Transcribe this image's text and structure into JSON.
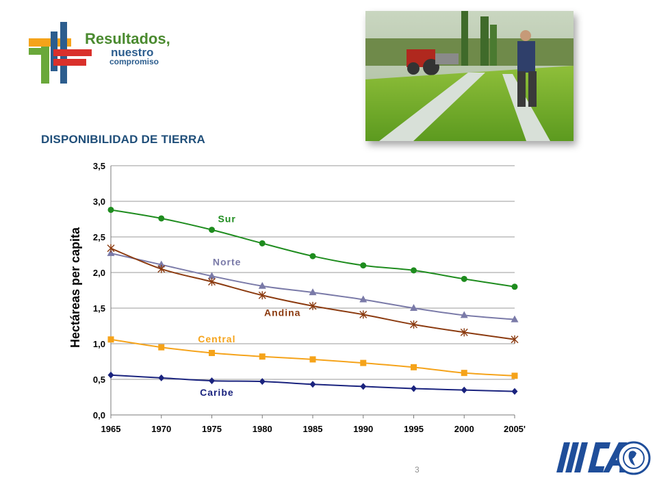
{
  "header": {
    "logo_line1": "Resultados,",
    "logo_line2": "nuestro",
    "logo_line3": "compromiso",
    "photo_description_icon": "farm-field-photo"
  },
  "section_title": "DISPONIBILIDAD DE TIERRA",
  "page_number": "3",
  "footer": {
    "brand_text": "IICA"
  },
  "colors": {
    "Sur": "#1e8c1e",
    "Norte": "#7a7aa8",
    "Andina": "#8b3a0f",
    "Central": "#f5a31a",
    "Caribe": "#1a237e",
    "title": "#1f4e79"
  },
  "chart_data": {
    "type": "line",
    "ylabel": "Hectáreas per capita",
    "xlabel": "",
    "categories": [
      "1965",
      "1970",
      "1975",
      "1980",
      "1985",
      "1990",
      "1995",
      "2000",
      "2005'"
    ],
    "ylim": [
      0,
      3.5
    ],
    "yticks": [
      "0,0",
      "0,5",
      "1,0",
      "1,5",
      "2,0",
      "2,5",
      "3,0",
      "3,5"
    ],
    "grid": true,
    "legend": "inline labels",
    "series": [
      {
        "name": "Sur",
        "marker": "circle",
        "values": [
          2.88,
          2.76,
          2.6,
          2.41,
          2.23,
          2.1,
          2.03,
          1.91,
          1.8
        ]
      },
      {
        "name": "Norte",
        "marker": "triangle",
        "values": [
          2.27,
          2.11,
          1.95,
          1.81,
          1.72,
          1.62,
          1.5,
          1.4,
          1.34
        ]
      },
      {
        "name": "Andina",
        "marker": "star",
        "values": [
          2.34,
          2.05,
          1.87,
          1.68,
          1.53,
          1.41,
          1.27,
          1.16,
          1.06
        ]
      },
      {
        "name": "Central",
        "marker": "square",
        "values": [
          1.06,
          0.95,
          0.87,
          0.82,
          0.78,
          0.73,
          0.67,
          0.59,
          0.55
        ]
      },
      {
        "name": "Caribe",
        "marker": "diamond",
        "values": [
          0.56,
          0.52,
          0.48,
          0.47,
          0.43,
          0.4,
          0.37,
          0.35,
          0.33
        ]
      }
    ]
  }
}
